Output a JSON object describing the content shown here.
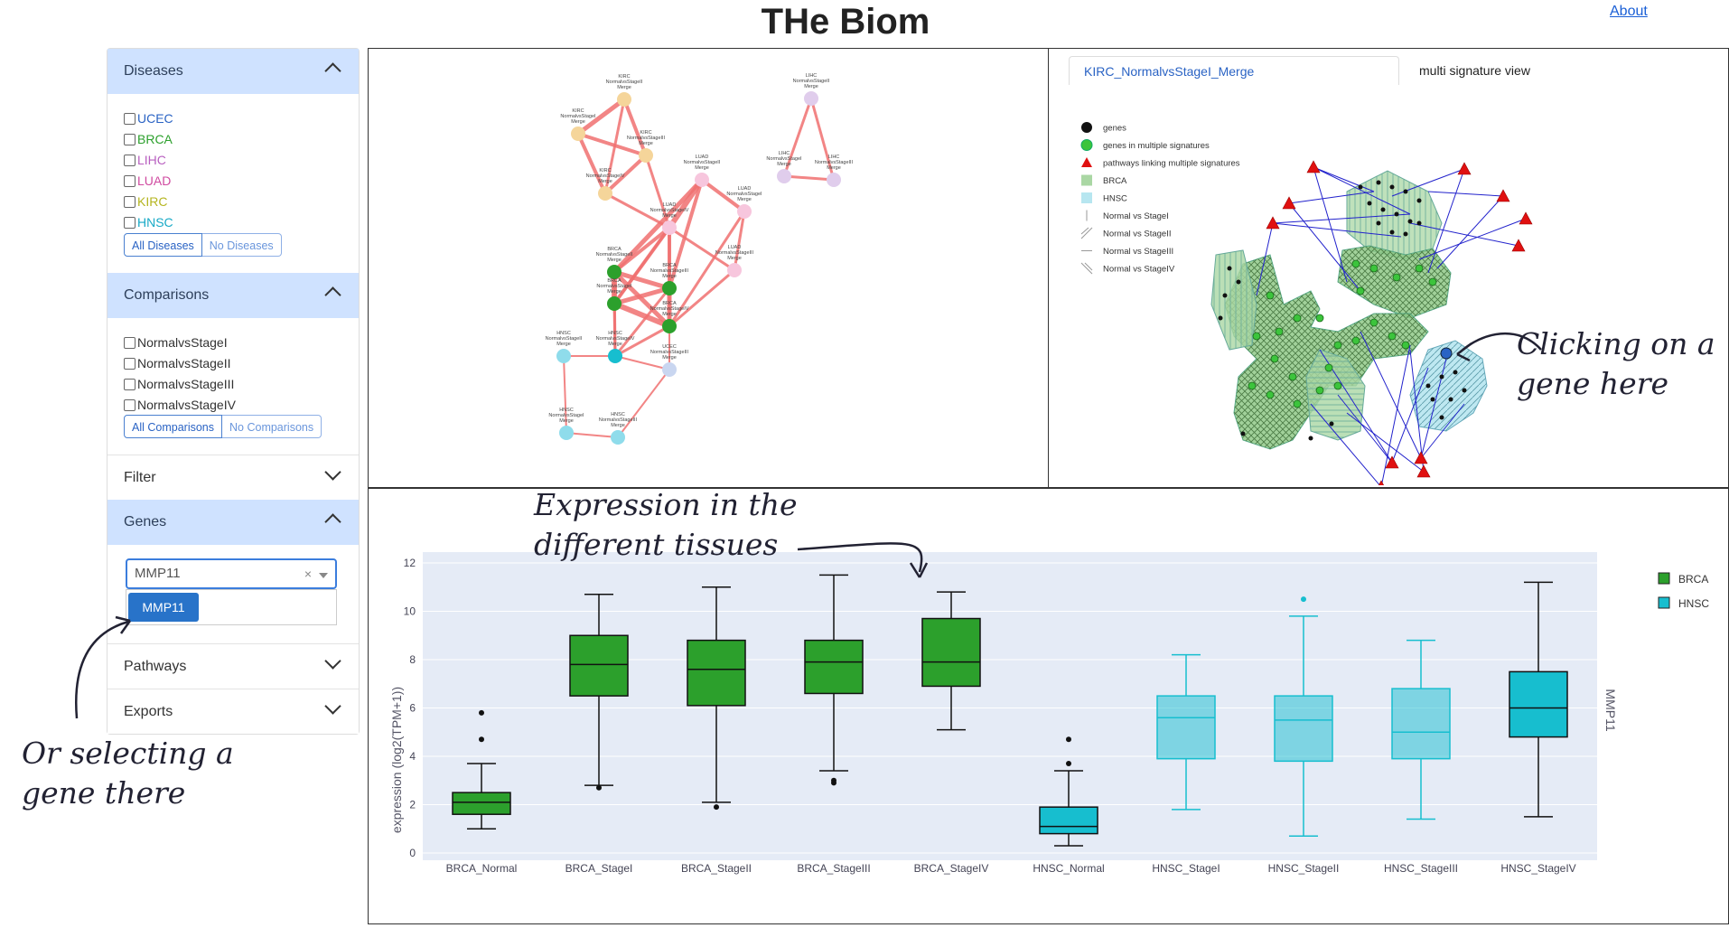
{
  "app": {
    "title": "THe Biom",
    "about_link": "About"
  },
  "sidebar": {
    "diseases": {
      "header": "Diseases",
      "items": [
        {
          "label": "UCEC",
          "color": "#2a63c4"
        },
        {
          "label": "BRCA",
          "color": "#2ca02c"
        },
        {
          "label": "LIHC",
          "color": "#b85fc0"
        },
        {
          "label": "LUAD",
          "color": "#d04aa0"
        },
        {
          "label": "KIRC",
          "color": "#b5b520"
        },
        {
          "label": "HNSC",
          "color": "#17a9c6"
        }
      ],
      "all_button": "All Diseases",
      "none_button": "No Diseases"
    },
    "comparisons": {
      "header": "Comparisons",
      "items": [
        "NormalvsStageI",
        "NormalvsStageII",
        "NormalvsStageIII",
        "NormalvsStageIV"
      ],
      "all_button": "All Comparisons",
      "none_button": "No Comparisons"
    },
    "filter": {
      "header": "Filter"
    },
    "genes": {
      "header": "Genes",
      "input_value": "MMP11",
      "clear_symbol": "×",
      "option": "MMP11"
    },
    "pathways": {
      "header": "Pathways"
    },
    "exports": {
      "header": "Exports"
    }
  },
  "network": {
    "nodes": [
      {
        "label": "KIRC NormalvsStageII Merge",
        "color": "#f5d59a"
      },
      {
        "label": "KIRC NormalvsStageI Merge",
        "color": "#f5d59a"
      },
      {
        "label": "KIRC NormalvsStageIII Merge",
        "color": "#f5d59a"
      },
      {
        "label": "KIRC NormalvsStageIV Merge",
        "color": "#f5d59a"
      },
      {
        "label": "LUAD NormalvsStageII Merge",
        "color": "#f7c6dd"
      },
      {
        "label": "LUAD NormalvsStageI Merge",
        "color": "#f7c6dd"
      },
      {
        "label": "LUAD NormalvsStageIV Merge",
        "color": "#f7c6dd"
      },
      {
        "label": "LUAD NormalvsStageIII Merge",
        "color": "#f7c6dd"
      },
      {
        "label": "BRCA NormalvsStageII Merge",
        "color": "#2ca02c"
      },
      {
        "label": "BRCA NormalvsStageI Merge",
        "color": "#2ca02c"
      },
      {
        "label": "BRCA NormalvsStageIII Merge",
        "color": "#2ca02c"
      },
      {
        "label": "BRCA NormalvsStageIV Merge",
        "color": "#2ca02c"
      },
      {
        "label": "HNSC NormalvsStageII Merge",
        "color": "#8fdceb"
      },
      {
        "label": "HNSC NormalvsStageIV Merge",
        "color": "#17becf"
      },
      {
        "label": "UCEC NormalvsStageIII Merge",
        "color": "#c9d6f0"
      },
      {
        "label": "HNSC NormalvsStageI Merge",
        "color": "#8fdceb"
      },
      {
        "label": "HNSC NormalvsStageIII Merge",
        "color": "#8fdceb"
      },
      {
        "label": "LIHC NormalvsStageII Merge",
        "color": "#e0cdec"
      },
      {
        "label": "LIHC NormalvsStageI Merge",
        "color": "#e0cdec"
      },
      {
        "label": "LIHC NormalvsStageIII Merge",
        "color": "#e0cdec"
      }
    ]
  },
  "signature_view": {
    "tabs": [
      "KIRC_NormalvsStageI_Merge",
      "multi signature view"
    ],
    "legend": [
      "genes",
      "genes in multiple signatures",
      "pathways linking multiple signatures",
      "BRCA",
      "HNSC",
      "Normal vs StageI",
      "Normal vs StageII",
      "Normal vs StageIII",
      "Normal vs StageIV"
    ],
    "colors": {
      "gene": "#111111",
      "multi_gene": "#3cc43c",
      "pathway": "#e01010",
      "BRCA": "#aad7a4",
      "HNSC": "#b7e6f0",
      "edge": "#2222cc"
    }
  },
  "annotations": {
    "click_gene": [
      "Clicking on a",
      "gene here"
    ],
    "select_gene": [
      "Or selecting a",
      "gene there"
    ],
    "expression": [
      "Expression in the",
      "different tissues"
    ]
  },
  "chart_data": {
    "type": "box",
    "title": "",
    "ylabel": "expression (log2(TPM+1))",
    "right_label": "MMP11",
    "ylim": [
      0,
      12
    ],
    "yticks": [
      0,
      2,
      4,
      6,
      8,
      10,
      12
    ],
    "grid": true,
    "legend_position": "top-right",
    "series": [
      {
        "name": "BRCA",
        "color": "#2ca02c"
      },
      {
        "name": "HNSC",
        "color": "#17becf"
      }
    ],
    "boxes": [
      {
        "category": "BRCA_Normal",
        "series": "BRCA",
        "min": 1.0,
        "q1": 1.6,
        "median": 2.1,
        "q3": 2.5,
        "max": 3.7,
        "outliers": [
          4.7,
          5.8
        ],
        "faded": false
      },
      {
        "category": "BRCA_StageI",
        "series": "BRCA",
        "min": 2.8,
        "q1": 6.5,
        "median": 7.8,
        "q3": 9.0,
        "max": 10.7,
        "outliers": [
          2.7
        ],
        "faded": false
      },
      {
        "category": "BRCA_StageII",
        "series": "BRCA",
        "min": 2.1,
        "q1": 6.1,
        "median": 7.6,
        "q3": 8.8,
        "max": 11.0,
        "outliers": [
          1.9
        ],
        "faded": false
      },
      {
        "category": "BRCA_StageIII",
        "series": "BRCA",
        "min": 3.4,
        "q1": 6.6,
        "median": 7.9,
        "q3": 8.8,
        "max": 11.5,
        "outliers": [
          3.0,
          2.9
        ],
        "faded": false
      },
      {
        "category": "BRCA_StageIV",
        "series": "BRCA",
        "min": 5.1,
        "q1": 6.9,
        "median": 7.9,
        "q3": 9.7,
        "max": 10.8,
        "outliers": [],
        "faded": false
      },
      {
        "category": "HNSC_Normal",
        "series": "HNSC",
        "min": 0.3,
        "q1": 0.8,
        "median": 1.1,
        "q3": 1.9,
        "max": 3.4,
        "outliers": [
          3.7,
          4.7
        ],
        "faded": false
      },
      {
        "category": "HNSC_StageI",
        "series": "HNSC",
        "min": 1.8,
        "q1": 3.9,
        "median": 5.6,
        "q3": 6.5,
        "max": 8.2,
        "outliers": [],
        "faded": true
      },
      {
        "category": "HNSC_StageII",
        "series": "HNSC",
        "min": 0.7,
        "q1": 3.8,
        "median": 5.5,
        "q3": 6.5,
        "max": 9.8,
        "outliers": [
          10.5
        ],
        "faded": true
      },
      {
        "category": "HNSC_StageIII",
        "series": "HNSC",
        "min": 1.4,
        "q1": 3.9,
        "median": 5.0,
        "q3": 6.8,
        "max": 8.8,
        "outliers": [],
        "faded": true
      },
      {
        "category": "HNSC_StageIV",
        "series": "HNSC",
        "min": 1.5,
        "q1": 4.8,
        "median": 6.0,
        "q3": 7.5,
        "max": 11.2,
        "outliers": [],
        "faded": false
      }
    ]
  }
}
